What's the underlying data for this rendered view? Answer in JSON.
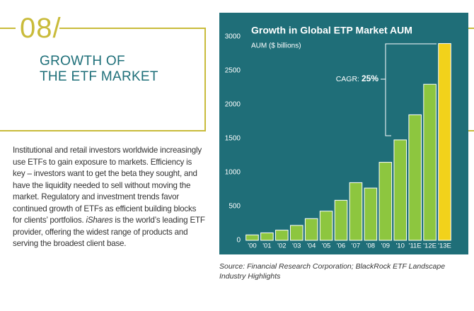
{
  "section": {
    "number": "08/",
    "title_lines": [
      "GROWTH OF",
      "THE ETF MARKET"
    ]
  },
  "body": {
    "parts": [
      {
        "text": "Institutional and retail investors worldwide increasingly use ETFs to gain exposure to markets. Efficiency is key – investors want to get the beta they sought, and have the liquidity needed to sell without moving the market. Regulatory and investment trends favor continued growth of ETFs as efficient building blocks for clients’ portfolios. ",
        "italic": false
      },
      {
        "text": "iShares",
        "italic": true
      },
      {
        "text": " is the world’s leading ETF provider, offering the widest range of products and serving the broadest client base.",
        "italic": false
      }
    ]
  },
  "chart_data": {
    "type": "bar",
    "title": "Growth in Global ETP Market AUM",
    "subtitle": "AUM ($ billions)",
    "categories": [
      "'00",
      "'01",
      "'02",
      "'03",
      "'04",
      "'05",
      "'06",
      "'07",
      "'08",
      "'09",
      "'10",
      "'11E",
      "'12E",
      "'13E"
    ],
    "values": [
      80,
      110,
      150,
      220,
      320,
      430,
      590,
      850,
      770,
      1150,
      1480,
      1850,
      2300,
      2900
    ],
    "colors": [
      "#8dc63f",
      "#8dc63f",
      "#8dc63f",
      "#8dc63f",
      "#8dc63f",
      "#8dc63f",
      "#8dc63f",
      "#8dc63f",
      "#8dc63f",
      "#8dc63f",
      "#8dc63f",
      "#8dc63f",
      "#8dc63f",
      "#f2d21b"
    ],
    "ylim": [
      0,
      3000
    ],
    "yticks": [
      0,
      500,
      1000,
      1500,
      2000,
      2500,
      3000
    ],
    "grid": false,
    "annotation": {
      "label": "CAGR:",
      "value_text": "25%"
    }
  },
  "source": "Source: Financial Research Corporation; BlackRock ETF Landscape Industry Highlights"
}
